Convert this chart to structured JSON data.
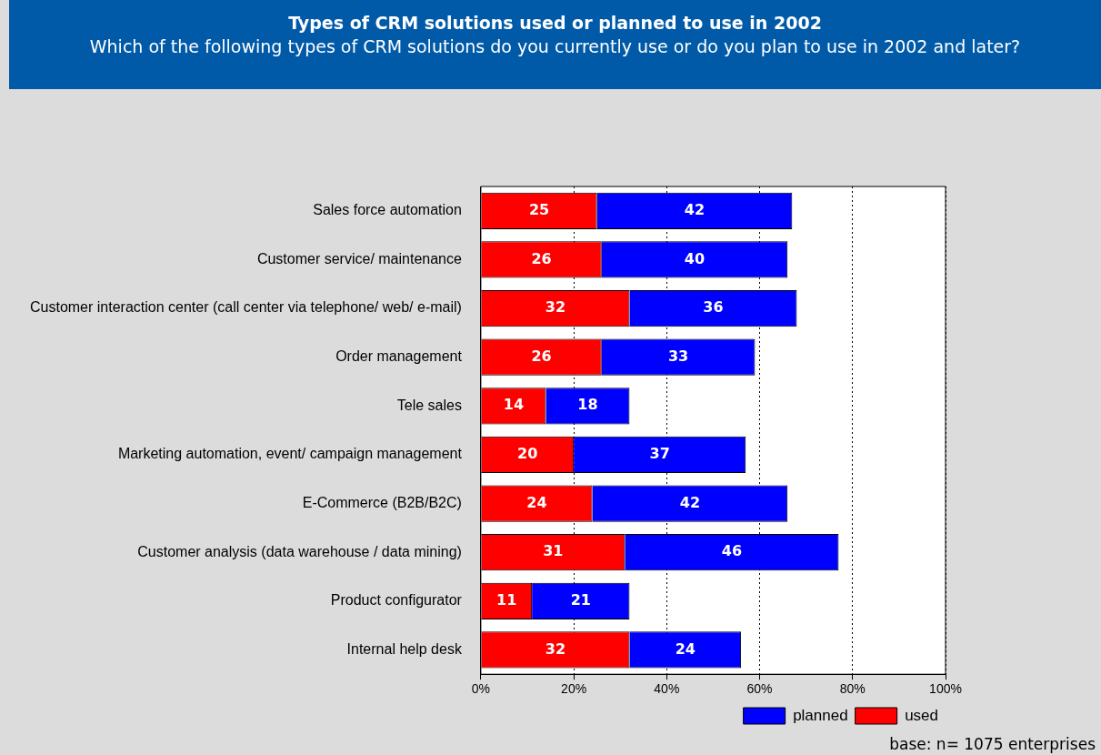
{
  "chart_data": {
    "type": "bar",
    "orientation": "horizontal",
    "stacked": true,
    "title": "Types of CRM solutions used or planned to use in 2002",
    "subtitle": "Which of the following types of CRM solutions do you currently use or do you plan to use in 2002 and later?",
    "categories": [
      "Sales force automation",
      "Customer service/ maintenance",
      "Customer interaction center (call center via telephone/ web/ e-mail)",
      "Order management",
      "Tele sales",
      "Marketing automation, event/ campaign management",
      "E-Commerce (B2B/B2C)",
      "Customer analysis (data warehouse / data mining)",
      "Product configurator",
      "Internal help desk"
    ],
    "series": [
      {
        "name": "used",
        "color": "#ff0000",
        "values": [
          25,
          26,
          32,
          26,
          14,
          20,
          24,
          31,
          11,
          32
        ]
      },
      {
        "name": "planned",
        "color": "#0000ff",
        "values": [
          42,
          40,
          36,
          33,
          18,
          37,
          42,
          46,
          21,
          24
        ]
      }
    ],
    "xlim": [
      0,
      100
    ],
    "xticks": [
      {
        "value": 0,
        "label": "0%"
      },
      {
        "value": 20,
        "label": "20%"
      },
      {
        "value": 40,
        "label": "40%"
      },
      {
        "value": 60,
        "label": "60%"
      },
      {
        "value": 80,
        "label": "80%"
      },
      {
        "value": 100,
        "label": "100%"
      }
    ],
    "grid": "x",
    "legend": "bottom right",
    "data_labels": true,
    "annotations": [
      "base: n= 1075 enterprises"
    ]
  }
}
